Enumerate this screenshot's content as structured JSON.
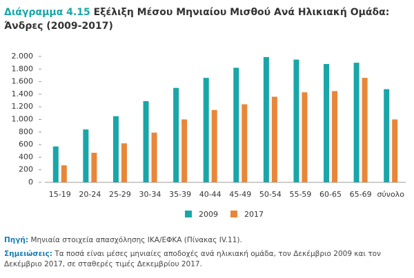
{
  "chart_data": {
    "type": "bar",
    "title_label": "Διάγραμμα 4.15",
    "title": "Εξέλιξη Μέσου Μηνιαίου Μισθού Ανά Ηλικιακή Ομάδα: Άνδρες (2009-2017)",
    "categories": [
      "15-19",
      "20-24",
      "25-29",
      "30-34",
      "35-39",
      "40-44",
      "45-49",
      "50-54",
      "55-59",
      "60-65",
      "65-69",
      "σύνολο"
    ],
    "series": [
      {
        "name": "2009",
        "color": "#1aa6a8",
        "values": [
          570,
          840,
          1050,
          1290,
          1500,
          1660,
          1820,
          1990,
          1950,
          1880,
          1900,
          1480
        ]
      },
      {
        "name": "2017",
        "color": "#e8873a",
        "values": [
          270,
          470,
          620,
          790,
          1000,
          1150,
          1240,
          1360,
          1430,
          1450,
          1660,
          1000
        ]
      }
    ],
    "ylim": [
      0,
      2000
    ],
    "yticks": [
      0,
      200,
      400,
      600,
      800,
      {
        "value": 1000,
        "label": "1.000"
      },
      {
        "value": 1200,
        "label": "1.200"
      },
      {
        "value": 1400,
        "label": "1.400"
      },
      {
        "value": 1600,
        "label": "1.600"
      },
      {
        "value": 1800,
        "label": "1.800"
      },
      {
        "value": 2000,
        "label": "2.000"
      }
    ],
    "grid": false,
    "legend": "bottom",
    "source_label": "Πηγή:",
    "source_text": "Μηνιαία στοιχεία απασχόλησης ΙΚΑ/ΕΦΚΑ (Πίνακας IV.11).",
    "notes_label": "Σημειώσεις:",
    "notes_text": "Τα ποσά είναι μέσες μηνιαίες αποδοχές ανά ηλικιακή ομάδα, τον Δεκέμβριο 2009 και τον Δεκέμβριο 2017, σε σταθερές τιμές Δεκεμβρίου 2017."
  }
}
